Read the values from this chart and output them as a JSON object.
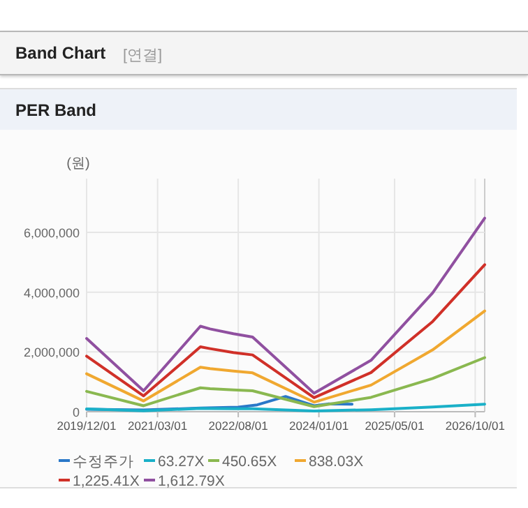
{
  "chart_data": {
    "type": "line",
    "title": "Band Chart",
    "subtitle": "PER Band",
    "annotations": [
      "[연결]"
    ],
    "ylabel": "(원)",
    "xlim": [
      "2019-12-01",
      "2026-12-01"
    ],
    "xticks": [
      {
        "value": "2019-12-01",
        "label": "2019/12/01"
      },
      {
        "value": "2021-03-01",
        "label": "2021/03/01"
      },
      {
        "value": "2022-08-01",
        "label": "2022/08/01"
      },
      {
        "value": "2024-01-01",
        "label": "2024/01/01"
      },
      {
        "value": "2025-05-01",
        "label": "2025/05/01"
      },
      {
        "value": "2026-10-01",
        "label": "2026/10/01"
      }
    ],
    "ylim": [
      0,
      7800000
    ],
    "yticks": [
      {
        "value": 0,
        "label": "0"
      },
      {
        "value": 2000000,
        "label": "2,000,000"
      },
      {
        "value": 4000000,
        "label": "4,000,000"
      },
      {
        "value": 6000000,
        "label": "6,000,000"
      }
    ],
    "grid": true,
    "legend": "bottom",
    "series": [
      {
        "name": "수정주가",
        "color": "#2a78c8",
        "x": [
          "2019-12",
          "2020-12",
          "2021-12",
          "2022-08",
          "2022-12",
          "2023-06",
          "2023-12",
          "2024-03",
          "2024-08"
        ],
        "values": [
          80000,
          60000,
          120000,
          150000,
          230000,
          510000,
          200000,
          260000,
          250000
        ]
      },
      {
        "name": "63.27X",
        "color": "#1ab0c8",
        "x": [
          "2019-12",
          "2020-12",
          "2021-12",
          "2022-02",
          "2022-07",
          "2022-11",
          "2023-12",
          "2024-12",
          "2026-01",
          "2026-12"
        ],
        "values": [
          96000,
          27000,
          112000,
          108000,
          102000,
          98000,
          24000,
          67000,
          155000,
          253000
        ]
      },
      {
        "name": "450.65X",
        "color": "#8ab850",
        "x": [
          "2019-12",
          "2020-12",
          "2021-12",
          "2022-02",
          "2022-07",
          "2022-11",
          "2023-12",
          "2024-12",
          "2026-01",
          "2026-12"
        ],
        "values": [
          680000,
          200000,
          800000,
          770000,
          730000,
          700000,
          170000,
          480000,
          1110000,
          1810000
        ]
      },
      {
        "name": "838.03X",
        "color": "#f0a830",
        "x": [
          "2019-12",
          "2020-12",
          "2021-12",
          "2022-02",
          "2022-07",
          "2022-11",
          "2023-12",
          "2024-12",
          "2026-01",
          "2026-12"
        ],
        "values": [
          1270000,
          360000,
          1490000,
          1440000,
          1360000,
          1300000,
          320000,
          890000,
          2070000,
          3370000
        ]
      },
      {
        "name": "1,225.41X",
        "color": "#d03028",
        "x": [
          "2019-12",
          "2020-12",
          "2021-12",
          "2022-02",
          "2022-07",
          "2022-11",
          "2023-12",
          "2024-12",
          "2026-01",
          "2026-12"
        ],
        "values": [
          1860000,
          530000,
          2170000,
          2110000,
          1980000,
          1900000,
          470000,
          1310000,
          3020000,
          4920000
        ]
      },
      {
        "name": "1,612.79X",
        "color": "#9050a0",
        "x": [
          "2019-12",
          "2020-12",
          "2021-12",
          "2022-02",
          "2022-07",
          "2022-11",
          "2023-12",
          "2024-12",
          "2026-01",
          "2026-12"
        ],
        "values": [
          2450000,
          700000,
          2860000,
          2770000,
          2610000,
          2500000,
          620000,
          1720000,
          3980000,
          6480000
        ]
      }
    ]
  }
}
